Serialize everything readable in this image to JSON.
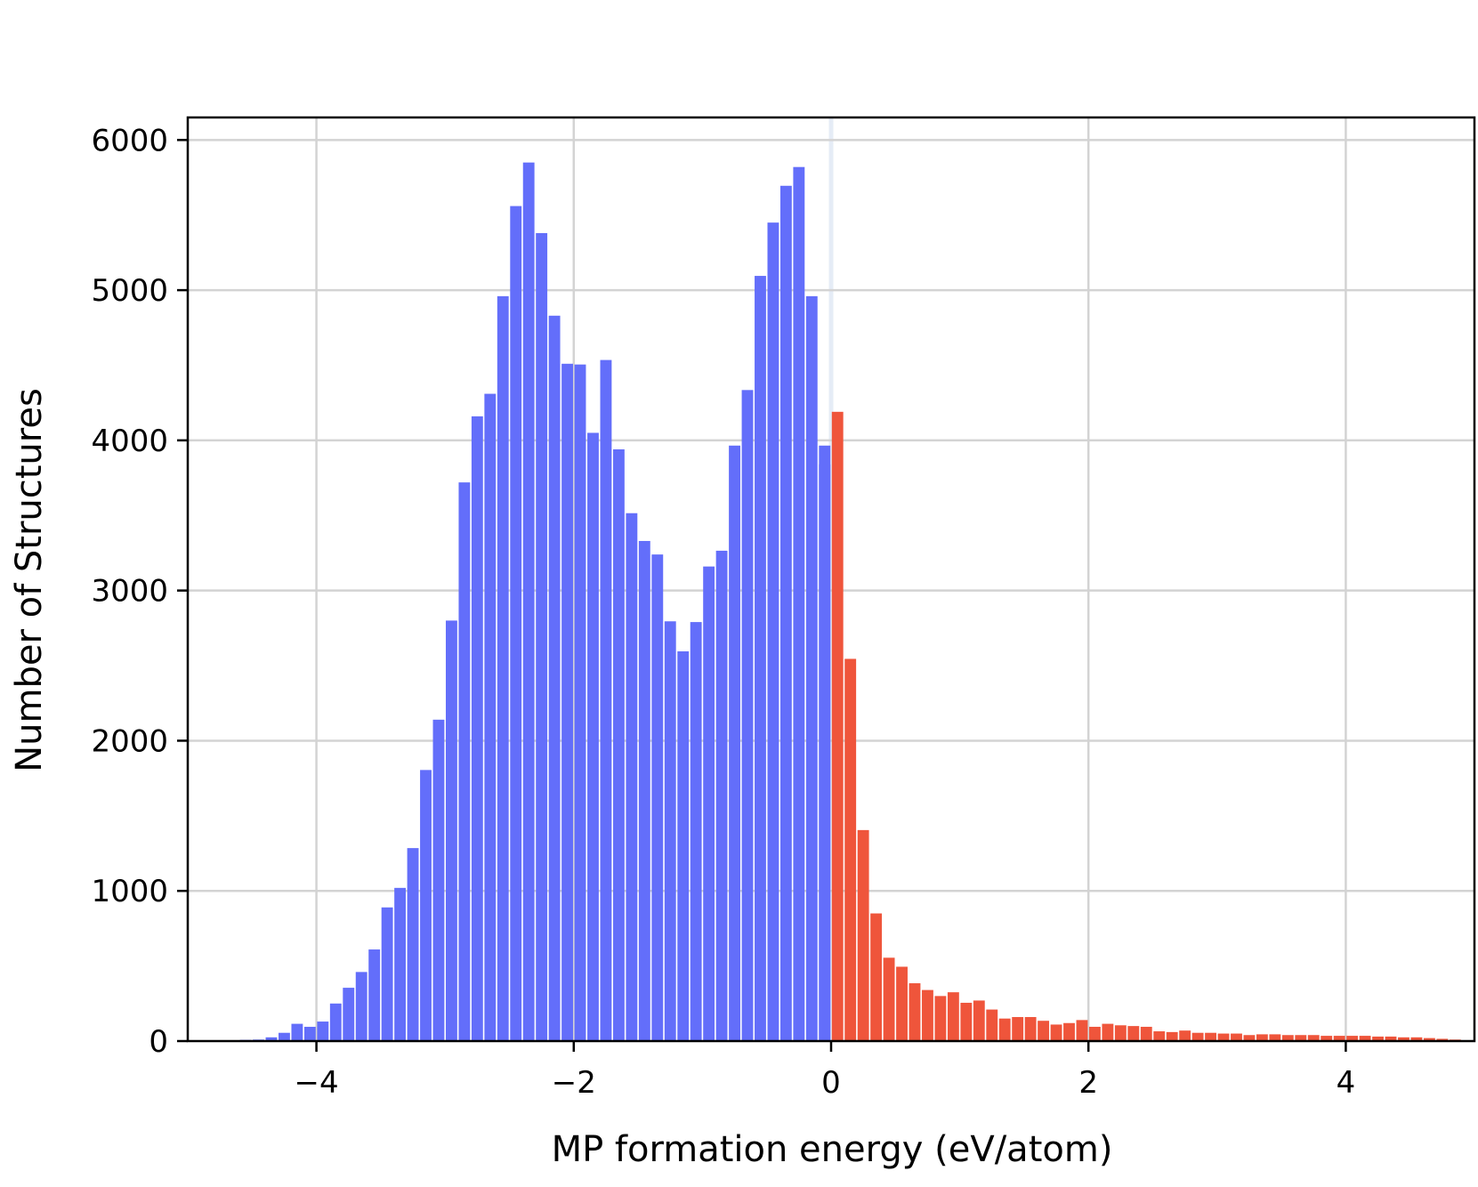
{
  "chart_data": {
    "type": "bar",
    "title": "",
    "xlabel": "MP formation energy (eV/atom)",
    "ylabel": "Number of Structures",
    "xlim": [
      -5,
      5
    ],
    "ylim": [
      0,
      6150
    ],
    "bin_width": 0.1,
    "x_ticks": [
      -4,
      -2,
      0,
      2,
      4
    ],
    "x_tick_labels": [
      "−4",
      "−2",
      "0",
      "2",
      "4"
    ],
    "y_ticks": [
      0,
      1000,
      2000,
      3000,
      4000,
      5000,
      6000
    ],
    "y_tick_labels": [
      "0",
      "1000",
      "2000",
      "3000",
      "4000",
      "5000",
      "6000"
    ],
    "grid": true,
    "legend": "none",
    "colors": {
      "negative": "#636efa",
      "positive": "#ef553b",
      "grid": "#d3d3d3",
      "zero_line": "#e5ecf6"
    },
    "series": [
      {
        "color_key": "negative",
        "bins_start": [
          -5.0,
          -4.9,
          -4.8,
          -4.7,
          -4.6,
          -4.5,
          -4.4,
          -4.3,
          -4.2,
          -4.1,
          -4.0,
          -3.9,
          -3.8,
          -3.7,
          -3.6,
          -3.5,
          -3.4,
          -3.3,
          -3.2,
          -3.1,
          -3.0,
          -2.9,
          -2.8,
          -2.7,
          -2.6,
          -2.5,
          -2.4,
          -2.3,
          -2.2,
          -2.1,
          -2.0,
          -1.9,
          -1.8,
          -1.7,
          -1.6,
          -1.5,
          -1.4,
          -1.3,
          -1.2,
          -1.1,
          -1.0,
          -0.9,
          -0.8,
          -0.7,
          -0.6,
          -0.5,
          -0.4,
          -0.3,
          -0.2,
          -0.1
        ],
        "values": [
          5,
          5,
          5,
          5,
          8,
          10,
          25,
          55,
          115,
          95,
          130,
          250,
          355,
          460,
          610,
          890,
          1020,
          1285,
          1805,
          2140,
          2800,
          3720,
          4160,
          4310,
          4960,
          5560,
          5850,
          5380,
          4830,
          4510,
          4505,
          4050,
          4535,
          3940,
          3515,
          3330,
          3240,
          2795,
          2595,
          2790,
          3160,
          3265,
          3965,
          4335,
          5095,
          5450,
          5695,
          5820,
          4960,
          3840
        ]
      },
      {
        "color_key": "positive",
        "bins_start": [
          -0.0,
          0.1,
          0.2,
          0.3,
          0.4,
          0.5,
          0.6,
          0.7,
          0.8,
          0.9,
          1.0,
          1.1,
          1.2,
          1.3,
          1.4,
          1.5,
          1.6,
          1.7,
          1.8,
          1.9,
          2.0,
          2.1,
          2.2,
          2.3,
          2.4,
          2.5,
          2.6,
          2.7,
          2.8,
          2.9,
          3.0,
          3.1,
          3.2,
          3.3,
          3.4,
          3.5,
          3.6,
          3.7,
          3.8,
          3.9,
          4.0,
          4.1,
          4.2,
          4.3,
          4.4,
          4.5,
          4.6,
          4.7,
          4.8,
          4.9
        ],
        "values": [
          4190,
          2545,
          1405,
          850,
          555,
          495,
          385,
          340,
          300,
          325,
          255,
          270,
          210,
          150,
          160,
          160,
          135,
          110,
          120,
          140,
          95,
          115,
          105,
          100,
          95,
          65,
          60,
          70,
          55,
          55,
          50,
          50,
          40,
          45,
          45,
          40,
          40,
          40,
          35,
          35,
          35,
          35,
          30,
          30,
          25,
          25,
          20,
          15,
          10,
          5
        ]
      }
    ],
    "overlay_bins_start": [
      -0.1
    ],
    "overlay_values": [
      3965
    ]
  }
}
